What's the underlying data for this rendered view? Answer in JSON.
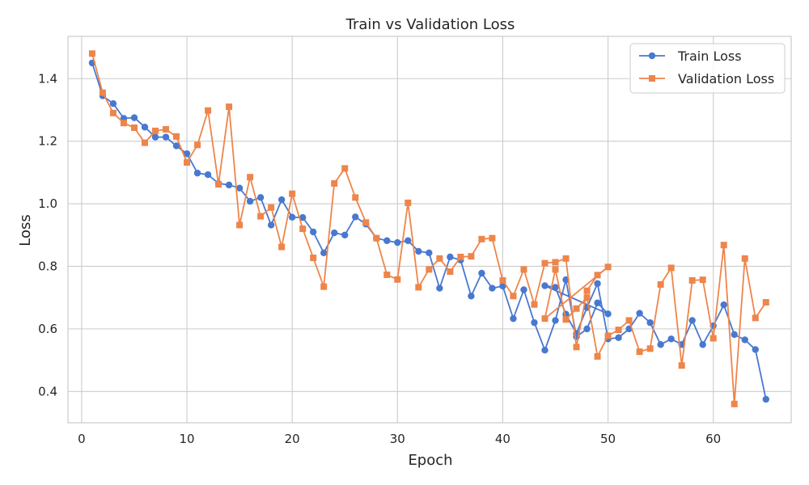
{
  "chart_data": {
    "type": "line",
    "title": "Train vs Validation Loss",
    "xlabel": "Epoch",
    "ylabel": "Loss",
    "xlim": [
      -1.3,
      67.4
    ],
    "ylim": [
      0.3,
      1.535
    ],
    "xticks": [
      0,
      10,
      20,
      30,
      40,
      50,
      60
    ],
    "yticks": [
      0.4,
      0.6,
      0.8,
      1.0,
      1.2,
      1.4
    ],
    "xtick_labels": [
      "0",
      "10",
      "20",
      "30",
      "40",
      "50",
      "60"
    ],
    "ytick_labels": [
      "0.4",
      "0.6",
      "0.8",
      "1.0",
      "1.2",
      "1.4"
    ],
    "grid": true,
    "legend_position": "top-right",
    "series": [
      {
        "name": "Train Loss",
        "color": "#4878d0",
        "marker": "circle",
        "x": [
          1,
          2,
          3,
          4,
          5,
          6,
          7,
          8,
          9,
          10,
          11,
          12,
          13,
          14,
          15,
          16,
          17,
          18,
          19,
          20,
          21,
          22,
          23,
          24,
          25,
          26,
          27,
          28,
          29,
          30,
          31,
          32,
          33,
          34,
          35,
          36,
          37,
          38,
          39,
          40,
          41,
          42,
          43,
          44,
          45,
          46,
          47,
          48,
          49,
          50,
          44,
          45,
          46,
          47,
          48,
          49,
          50,
          51,
          52,
          53,
          54,
          55,
          56,
          57,
          58,
          59,
          60,
          61,
          62,
          63,
          64,
          65
        ],
        "y": [
          1.45,
          1.345,
          1.32,
          1.273,
          1.275,
          1.245,
          1.213,
          1.213,
          1.185,
          1.16,
          1.098,
          1.093,
          1.065,
          1.06,
          1.05,
          1.008,
          1.02,
          0.932,
          1.013,
          0.957,
          0.956,
          0.91,
          0.843,
          0.907,
          0.9,
          0.958,
          0.935,
          0.89,
          0.882,
          0.876,
          0.882,
          0.848,
          0.843,
          0.73,
          0.83,
          0.82,
          0.705,
          0.778,
          0.73,
          0.737,
          0.633,
          0.725,
          0.62,
          0.532,
          0.627,
          0.757,
          0.575,
          0.6,
          0.683,
          0.648,
          0.738,
          0.733,
          0.647,
          0.585,
          0.668,
          0.745,
          0.568,
          0.572,
          0.6,
          0.65,
          0.62,
          0.55,
          0.568,
          0.55,
          0.627,
          0.55,
          0.61,
          0.677,
          0.582,
          0.565,
          0.534,
          0.375
        ]
      },
      {
        "name": "Validation Loss",
        "color": "#ee854a",
        "marker": "square",
        "x": [
          1,
          2,
          3,
          4,
          5,
          6,
          7,
          8,
          9,
          10,
          11,
          12,
          13,
          14,
          15,
          16,
          17,
          18,
          19,
          20,
          21,
          22,
          23,
          24,
          25,
          26,
          27,
          28,
          29,
          30,
          31,
          32,
          33,
          34,
          35,
          36,
          37,
          38,
          39,
          40,
          41,
          42,
          43,
          44,
          45,
          46,
          47,
          48,
          49,
          50,
          44,
          45,
          46,
          47,
          48,
          49,
          50,
          51,
          52,
          53,
          54,
          55,
          56,
          57,
          58,
          59,
          60,
          61,
          62,
          63,
          64,
          65
        ],
        "y": [
          1.48,
          1.355,
          1.29,
          1.258,
          1.243,
          1.195,
          1.233,
          1.238,
          1.215,
          1.132,
          1.188,
          1.298,
          1.062,
          1.31,
          0.932,
          1.085,
          0.96,
          0.988,
          0.862,
          1.032,
          0.92,
          0.827,
          0.735,
          1.065,
          1.113,
          1.02,
          0.94,
          0.89,
          0.773,
          0.758,
          1.003,
          0.733,
          0.79,
          0.825,
          0.783,
          0.83,
          0.832,
          0.887,
          0.89,
          0.755,
          0.705,
          0.79,
          0.678,
          0.81,
          0.813,
          0.825,
          0.542,
          0.722,
          0.772,
          0.798,
          0.633,
          0.79,
          0.63,
          0.665,
          0.7,
          0.512,
          0.578,
          0.597,
          0.627,
          0.527,
          0.537,
          0.742,
          0.795,
          0.483,
          0.755,
          0.757,
          0.57,
          0.868,
          0.36,
          0.825,
          0.635,
          0.685
        ]
      }
    ]
  }
}
